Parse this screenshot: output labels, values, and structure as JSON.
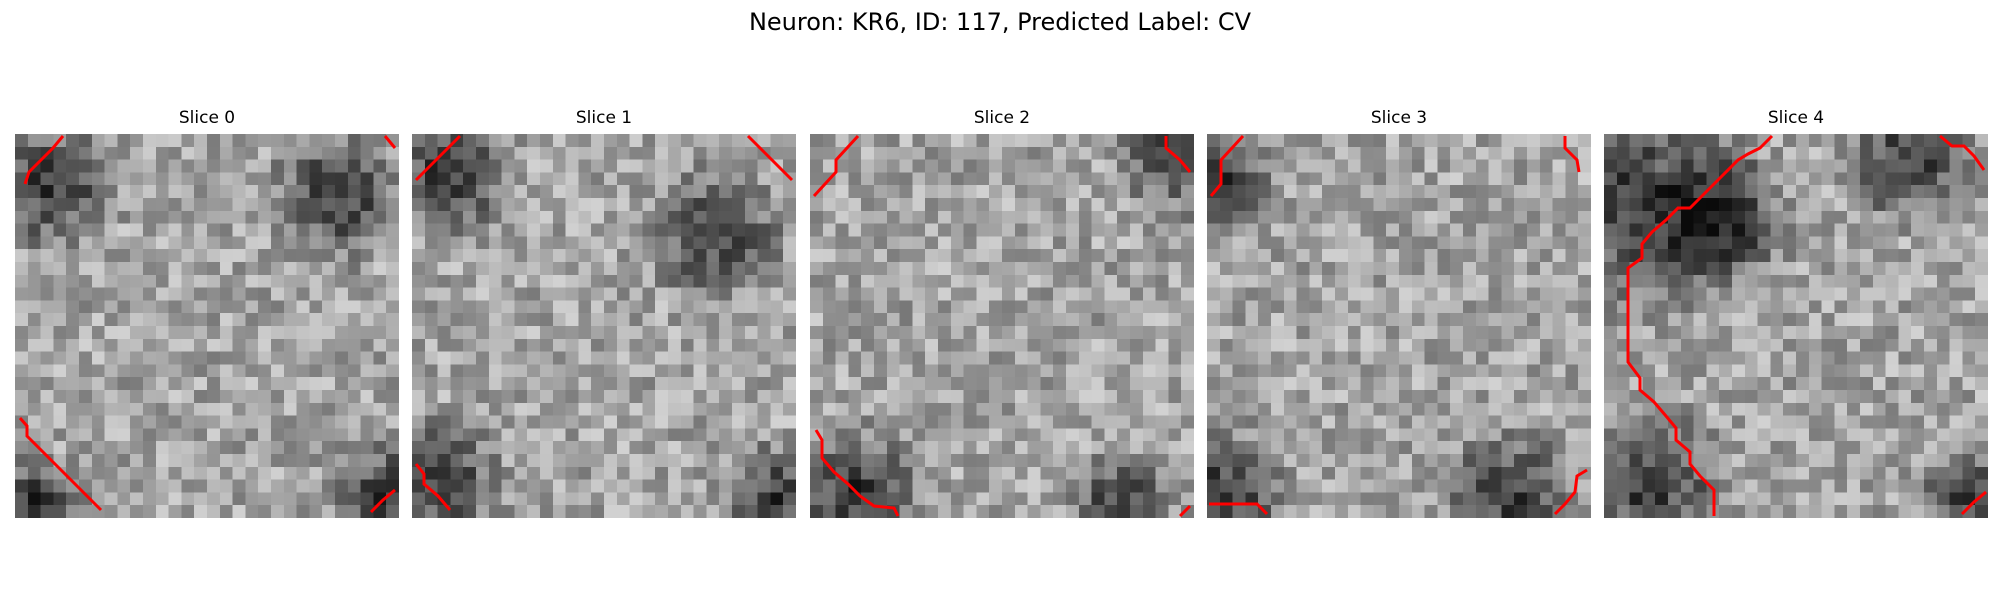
{
  "title": "Neuron: KR6, ID: 117, Predicted Label: CV",
  "slices": [
    {
      "label": "Slice 0"
    },
    {
      "label": "Slice 1"
    },
    {
      "label": "Slice 2"
    },
    {
      "label": "Slice 3"
    },
    {
      "label": "Slice 4"
    }
  ],
  "colors": {
    "contour": "#ff0000",
    "background": "#ffffff"
  }
}
